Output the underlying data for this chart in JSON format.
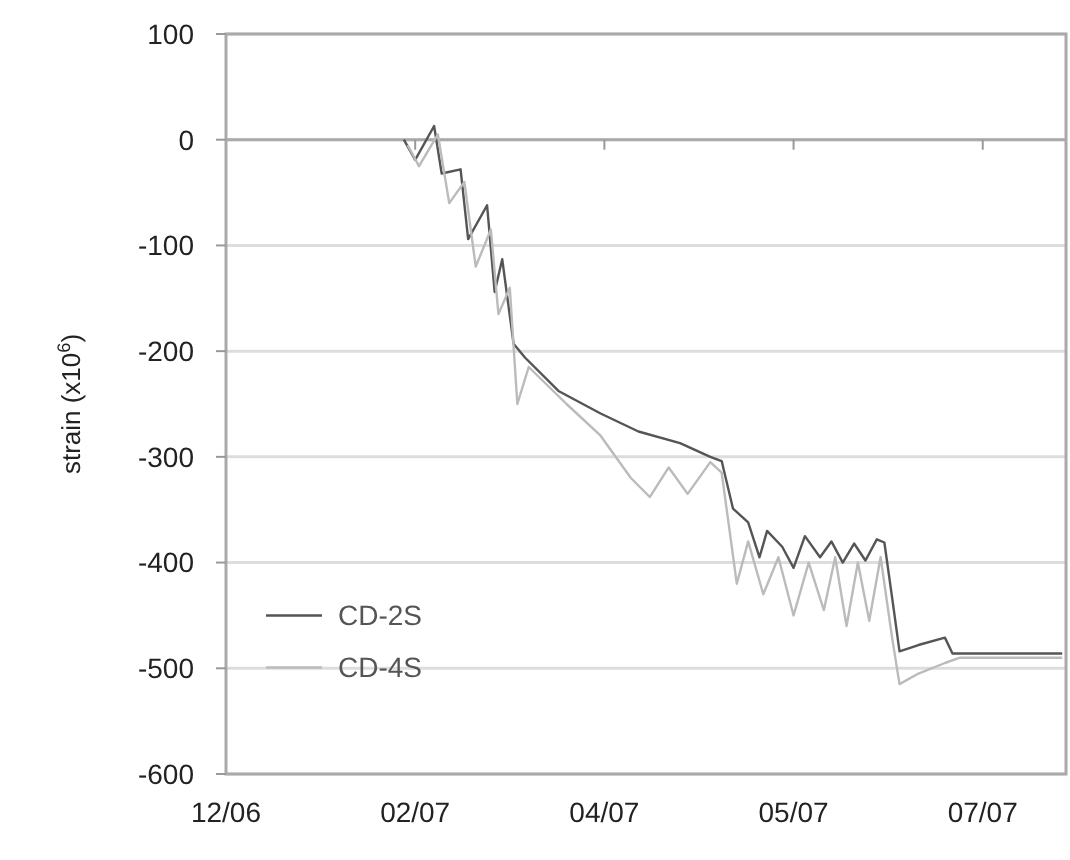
{
  "chart_data": {
    "type": "line",
    "ylabel": "strain (x10$^{6}$)",
    "xlim": [
      "2006-12-25",
      "2007-08-04"
    ],
    "xticks": [
      {
        "value": "2006-12-25",
        "label": "12/06"
      },
      {
        "value": "2007-02-13",
        "label": "02/07"
      },
      {
        "value": "2007-04-04",
        "label": "04/07"
      },
      {
        "value": "2007-05-24",
        "label": "05/07"
      },
      {
        "value": "2007-07-13",
        "label": "07/07"
      }
    ],
    "ylim": [
      -600,
      100
    ],
    "yticks": [
      100,
      0,
      -100,
      -200,
      -300,
      -400,
      -500,
      -600
    ],
    "grid": "y",
    "legend": "bottom left",
    "line_style": "solid",
    "marker": "none",
    "series": [
      {
        "name": "CD-2S",
        "color": "#555555",
        "x": [
          "2007-02-10",
          "2007-02-13",
          "2007-02-18",
          "2007-02-20",
          "2007-02-25",
          "2007-02-27",
          "2007-03-04",
          "2007-03-06",
          "2007-03-08",
          "2007-03-11",
          "2007-03-14",
          "2007-03-23",
          "2007-04-03",
          "2007-04-13",
          "2007-04-24",
          "2007-05-02",
          "2007-05-05",
          "2007-05-08",
          "2007-05-12",
          "2007-05-15",
          "2007-05-17",
          "2007-05-21",
          "2007-05-24",
          "2007-05-27",
          "2007-05-31",
          "2007-06-03",
          "2007-06-06",
          "2007-06-09",
          "2007-06-12",
          "2007-06-15",
          "2007-06-17",
          "2007-06-19",
          "2007-06-21",
          "2007-06-26",
          "2007-07-03",
          "2007-07-05",
          "2007-08-03"
        ],
        "values": [
          0,
          -19,
          13,
          -32,
          -28,
          -94,
          -62,
          -144,
          -113,
          -193,
          -206,
          -238,
          -259,
          -276,
          -287,
          -300,
          -304,
          -349,
          -362,
          -395,
          -370,
          -385,
          -405,
          -375,
          -395,
          -380,
          -400,
          -382,
          -398,
          -378,
          -381,
          -432,
          -484,
          -478,
          -471,
          -486,
          -486
        ]
      },
      {
        "name": "CD-4S",
        "color": "#bbbbbb",
        "x": [
          "2007-02-11",
          "2007-02-14",
          "2007-02-19",
          "2007-02-22",
          "2007-02-26",
          "2007-03-01",
          "2007-03-05",
          "2007-03-07",
          "2007-03-10",
          "2007-03-12",
          "2007-03-15",
          "2007-03-25",
          "2007-04-03",
          "2007-04-11",
          "2007-04-16",
          "2007-04-21",
          "2007-04-26",
          "2007-05-02",
          "2007-05-05",
          "2007-05-09",
          "2007-05-12",
          "2007-05-16",
          "2007-05-20",
          "2007-05-24",
          "2007-05-28",
          "2007-06-01",
          "2007-06-04",
          "2007-06-07",
          "2007-06-10",
          "2007-06-13",
          "2007-06-16",
          "2007-06-19",
          "2007-06-21",
          "2007-06-26",
          "2007-07-03",
          "2007-07-07",
          "2007-08-03"
        ],
        "values": [
          -5,
          -25,
          5,
          -60,
          -40,
          -120,
          -85,
          -165,
          -140,
          -250,
          -215,
          -250,
          -280,
          -320,
          -338,
          -310,
          -335,
          -305,
          -315,
          -420,
          -380,
          -430,
          -395,
          -450,
          -400,
          -445,
          -395,
          -460,
          -400,
          -455,
          -395,
          -470,
          -515,
          -505,
          -495,
          -490,
          -490
        ]
      }
    ]
  }
}
